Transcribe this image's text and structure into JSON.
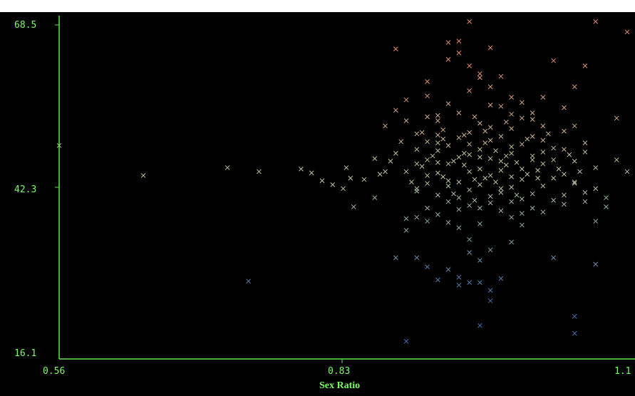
{
  "chart_data": {
    "type": "scatter",
    "title": "",
    "xlabel": "Sex Ratio",
    "ylabel": "",
    "xlim": [
      0.56,
      1.1
    ],
    "ylim": [
      16.1,
      68.5
    ],
    "x_ticks": [
      "0.56",
      "0.83",
      "1.1"
    ],
    "y_ticks": [
      "68.5",
      "42.3",
      "16.1"
    ],
    "grid": false,
    "legend": "none",
    "marker": "x",
    "colors": {
      "background": "#000000",
      "axis": "#5ee84a",
      "text": "#7cfc62",
      "low": "#3f6fa8",
      "mid": "#b8c8a0",
      "high": "#e08868"
    },
    "note_points": "approximate; color encodes y value (blue low, beige middle, salmon high)",
    "series": [
      {
        "points": [
          [
            0.56,
            48.6
          ],
          [
            0.64,
            44.0
          ],
          [
            0.72,
            45.2
          ],
          [
            0.74,
            27.8
          ],
          [
            0.75,
            44.6
          ],
          [
            0.79,
            45.0
          ],
          [
            0.8,
            44.4
          ],
          [
            0.81,
            43.2
          ],
          [
            0.82,
            42.6
          ],
          [
            0.83,
            42.0
          ],
          [
            0.84,
            39.2
          ],
          [
            0.833,
            45.2
          ],
          [
            0.837,
            43.6
          ],
          [
            0.85,
            43.4
          ],
          [
            0.86,
            46.6
          ],
          [
            0.87,
            44.6
          ],
          [
            0.86,
            40.6
          ],
          [
            0.88,
            47.4
          ],
          [
            0.88,
            63.4
          ],
          [
            0.88,
            54.0
          ],
          [
            0.89,
            52.4
          ],
          [
            0.87,
            51.6
          ],
          [
            0.9,
            50.4
          ],
          [
            0.91,
            53.0
          ],
          [
            0.92,
            53.2
          ],
          [
            0.93,
            64.4
          ],
          [
            0.94,
            62.8
          ],
          [
            0.94,
            64.6
          ],
          [
            0.95,
            67.6
          ],
          [
            0.96,
            59.0
          ],
          [
            0.95,
            60.8
          ],
          [
            0.97,
            63.6
          ],
          [
            0.96,
            59.6
          ],
          [
            0.98,
            59.2
          ],
          [
            0.99,
            56.0
          ],
          [
            1.02,
            56.0
          ],
          [
            1.03,
            61.6
          ],
          [
            1.05,
            57.6
          ],
          [
            1.06,
            60.8
          ],
          [
            1.0,
            55.2
          ],
          [
            1.04,
            54.4
          ],
          [
            1.09,
            52.8
          ],
          [
            1.1,
            66.0
          ],
          [
            1.07,
            67.6
          ],
          [
            0.93,
            61.8
          ],
          [
            0.91,
            58.4
          ],
          [
            0.89,
            55.6
          ],
          [
            0.92,
            49.0
          ],
          [
            0.97,
            57.6
          ],
          [
            0.9,
            42.0
          ],
          [
            0.9,
            37.6
          ],
          [
            0.89,
            37.4
          ],
          [
            0.91,
            37.0
          ],
          [
            0.92,
            38.0
          ],
          [
            0.93,
            36.8
          ],
          [
            0.94,
            36.0
          ],
          [
            0.95,
            34.2
          ],
          [
            0.96,
            36.6
          ],
          [
            0.97,
            32.6
          ],
          [
            0.98,
            38.6
          ],
          [
            0.99,
            37.6
          ],
          [
            1.0,
            36.4
          ],
          [
            1.02,
            38.4
          ],
          [
            1.04,
            39.6
          ],
          [
            1.06,
            40.0
          ],
          [
            1.07,
            37.0
          ],
          [
            1.08,
            39.2
          ],
          [
            1.1,
            44.6
          ],
          [
            1.09,
            46.4
          ],
          [
            1.08,
            40.6
          ],
          [
            0.9,
            31.4
          ],
          [
            0.91,
            30.0
          ],
          [
            0.92,
            28.0
          ],
          [
            0.93,
            29.6
          ],
          [
            0.94,
            28.4
          ],
          [
            0.94,
            27.2
          ],
          [
            0.95,
            27.6
          ],
          [
            0.95,
            32.2
          ],
          [
            0.96,
            31.0
          ],
          [
            0.96,
            27.6
          ],
          [
            0.97,
            26.4
          ],
          [
            0.97,
            24.8
          ],
          [
            0.98,
            28.2
          ],
          [
            0.99,
            33.8
          ],
          [
            1.03,
            31.4
          ],
          [
            1.07,
            30.4
          ],
          [
            1.05,
            22.4
          ],
          [
            1.05,
            19.8
          ],
          [
            0.96,
            21.0
          ],
          [
            0.89,
            18.6
          ],
          [
            0.88,
            31.4
          ],
          [
            0.89,
            35.6
          ],
          [
            0.89,
            44.6
          ],
          [
            0.9,
            45.8
          ],
          [
            0.91,
            46.4
          ],
          [
            0.92,
            44.4
          ],
          [
            0.93,
            45.8
          ],
          [
            0.94,
            46.8
          ],
          [
            0.95,
            44.6
          ],
          [
            0.96,
            45.0
          ],
          [
            0.97,
            44.0
          ],
          [
            0.98,
            46.2
          ],
          [
            0.99,
            47.4
          ],
          [
            1.0,
            45.0
          ],
          [
            1.01,
            46.4
          ],
          [
            1.02,
            45.8
          ],
          [
            1.03,
            43.6
          ],
          [
            1.04,
            44.2
          ],
          [
            1.05,
            43.0
          ],
          [
            1.06,
            47.6
          ],
          [
            1.07,
            45.2
          ],
          [
            0.9,
            48.0
          ],
          [
            0.91,
            49.2
          ],
          [
            0.92,
            50.2
          ],
          [
            0.93,
            48.6
          ],
          [
            0.94,
            49.8
          ],
          [
            0.95,
            50.6
          ],
          [
            0.96,
            48.0
          ],
          [
            0.97,
            49.4
          ],
          [
            0.98,
            50.0
          ],
          [
            0.99,
            51.2
          ],
          [
            1.0,
            48.8
          ],
          [
            1.01,
            50.0
          ],
          [
            1.02,
            49.4
          ],
          [
            1.03,
            48.2
          ],
          [
            1.04,
            50.8
          ],
          [
            1.05,
            51.6
          ],
          [
            1.06,
            49.0
          ],
          [
            0.9,
            41.6
          ],
          [
            0.91,
            42.8
          ],
          [
            0.92,
            41.0
          ],
          [
            0.93,
            42.4
          ],
          [
            0.94,
            40.6
          ],
          [
            0.95,
            41.8
          ],
          [
            0.96,
            42.6
          ],
          [
            0.97,
            40.8
          ],
          [
            0.98,
            41.4
          ],
          [
            0.99,
            42.2
          ],
          [
            1.0,
            40.4
          ],
          [
            1.01,
            41.2
          ],
          [
            1.02,
            42.4
          ],
          [
            1.03,
            40.2
          ],
          [
            1.04,
            41.0
          ],
          [
            1.05,
            42.8
          ],
          [
            1.06,
            41.4
          ],
          [
            1.07,
            42.0
          ],
          [
            0.92,
            52.4
          ],
          [
            0.94,
            53.6
          ],
          [
            0.96,
            52.0
          ],
          [
            0.98,
            54.6
          ],
          [
            1.0,
            52.8
          ],
          [
            1.02,
            51.6
          ],
          [
            0.91,
            44.0
          ],
          [
            0.93,
            43.2
          ],
          [
            0.95,
            47.2
          ],
          [
            0.97,
            46.6
          ],
          [
            0.99,
            43.8
          ],
          [
            1.01,
            47.0
          ],
          [
            0.92,
            46.0
          ],
          [
            0.94,
            43.0
          ],
          [
            0.96,
            46.8
          ],
          [
            0.98,
            44.8
          ],
          [
            1.0,
            43.4
          ],
          [
            1.02,
            47.6
          ],
          [
            0.93,
            40.0
          ],
          [
            0.95,
            39.4
          ],
          [
            0.97,
            39.8
          ],
          [
            0.99,
            40.0
          ],
          [
            1.01,
            39.0
          ],
          [
            1.03,
            46.4
          ],
          [
            0.91,
            39.0
          ],
          [
            0.94,
            38.8
          ],
          [
            0.96,
            39.0
          ],
          [
            0.98,
            42.0
          ],
          [
            1.0,
            38.2
          ],
          [
            1.05,
            46.2
          ],
          [
            0.92,
            47.8
          ],
          [
            0.95,
            48.8
          ],
          [
            0.97,
            51.4
          ],
          [
            0.99,
            48.4
          ],
          [
            1.01,
            52.6
          ],
          [
            1.04,
            48.0
          ],
          [
            0.905,
            45.4
          ],
          [
            0.925,
            43.8
          ],
          [
            0.945,
            45.6
          ],
          [
            0.965,
            43.6
          ],
          [
            0.985,
            45.6
          ],
          [
            1.005,
            44.2
          ],
          [
            0.915,
            47.0
          ],
          [
            0.935,
            46.2
          ],
          [
            0.955,
            43.4
          ],
          [
            0.975,
            47.8
          ],
          [
            0.995,
            46.0
          ],
          [
            1.015,
            43.6
          ],
          [
            0.905,
            50.6
          ],
          [
            0.925,
            51.0
          ],
          [
            0.945,
            47.4
          ],
          [
            0.965,
            50.8
          ],
          [
            0.985,
            47.0
          ],
          [
            1.025,
            50.4
          ],
          [
            0.885,
            49.2
          ],
          [
            0.875,
            46.2
          ],
          [
            0.865,
            44.2
          ],
          [
            0.895,
            43.0
          ],
          [
            0.935,
            41.2
          ],
          [
            0.955,
            40.2
          ],
          [
            0.975,
            43.0
          ],
          [
            0.995,
            41.0
          ],
          [
            1.015,
            44.8
          ],
          [
            1.035,
            45.0
          ],
          [
            1.045,
            47.2
          ],
          [
            1.055,
            44.6
          ],
          [
            0.91,
            56.2
          ],
          [
            0.93,
            55.0
          ],
          [
            0.95,
            57.0
          ],
          [
            0.97,
            54.8
          ],
          [
            0.99,
            53.4
          ],
          [
            1.01,
            53.6
          ],
          [
            0.925,
            49.6
          ],
          [
            0.945,
            50.2
          ],
          [
            0.965,
            49.0
          ],
          [
            0.985,
            52.2
          ],
          [
            1.005,
            49.6
          ],
          [
            0.955,
            53.0
          ]
        ]
      }
    ]
  }
}
